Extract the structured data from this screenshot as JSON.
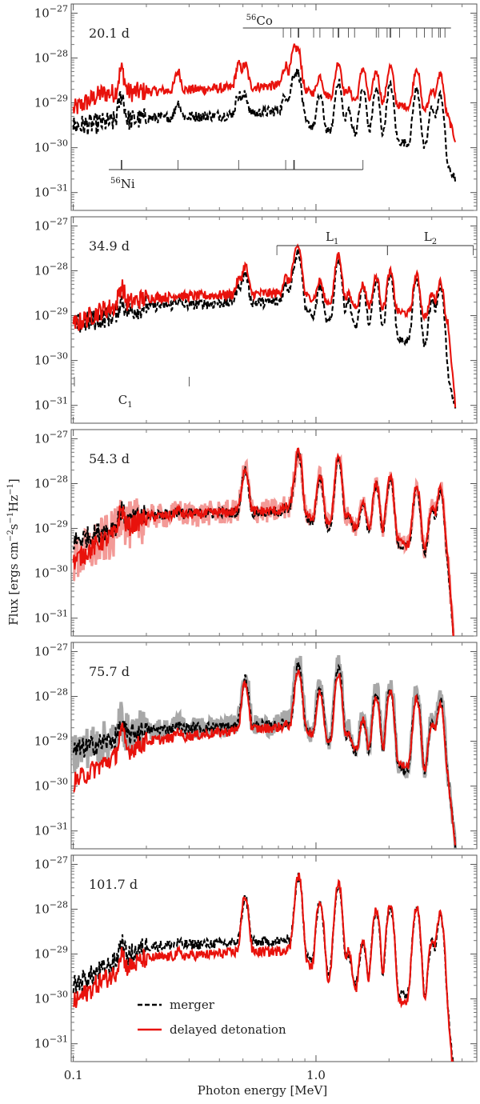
{
  "chart_data": {
    "type": "line",
    "xlabel": "Photon energy [MeV]",
    "ylabel": "Flux [ergs cm$^{-2}$s$^{-1}$Hz$^{-1}$]",
    "ylabel_parts": {
      "flux": "Flux [ergs cm",
      "cm_exp": "−2",
      "s": "s",
      "s_exp": "−1",
      "hz": "Hz",
      "hz_exp": "−1",
      "close": "]"
    },
    "xscale": "log",
    "yscale": "log",
    "xlim": [
      0.098,
      4.6
    ],
    "ylim": [
      4e-32,
      1.6e-27
    ],
    "x_ticks": [
      {
        "value": 0.1,
        "label": "0.1"
      },
      {
        "value": 1.0,
        "label": "1.0"
      }
    ],
    "y_ticks": [
      {
        "value": 1e-27,
        "base": "10",
        "exp": "−27"
      },
      {
        "value": 1e-28,
        "base": "10",
        "exp": "−28"
      },
      {
        "value": 1e-29,
        "base": "10",
        "exp": "−29"
      },
      {
        "value": 1e-30,
        "base": "10",
        "exp": "−30"
      },
      {
        "value": 1e-31,
        "base": "10",
        "exp": "−31"
      }
    ],
    "legend": {
      "placement": "lower-left of bottom panel",
      "entries": [
        {
          "label": "merger",
          "color": "#000000",
          "style": "dashed"
        },
        {
          "label": "delayed detonation",
          "color": "#e8120c",
          "style": "solid"
        }
      ]
    },
    "colors": {
      "merger": "#000000",
      "delayed_detonation": "#e8120c",
      "delayed_detonation_spread": "#f39a97",
      "merger_spread": "#a8a8a8"
    },
    "line_energies_MeV": [
      0.158,
      0.27,
      0.48,
      0.511,
      0.75,
      0.812,
      0.847,
      1.038,
      1.238,
      1.36,
      1.562,
      1.771,
      2.015,
      2.035,
      2.599,
      3.01,
      3.253
    ],
    "panels": [
      {
        "label": "20.1 d",
        "annotations": [
          {
            "label_sup": "56",
            "label": "Co",
            "x_start": 0.5,
            "x_end": 3.6,
            "tick_x": [
              0.733,
              0.787,
              0.847,
              0.978,
              1.038,
              1.175,
              1.238,
              1.36,
              1.442,
              1.771,
              1.81,
              1.964,
              2.015,
              2.035,
              2.213,
              2.599,
              2.8,
              3.01,
              3.202,
              3.253,
              3.4
            ]
          },
          {
            "label_sup": "56",
            "label": "Ni",
            "x_start": 0.14,
            "x_end": 1.56,
            "tick_x": [
              0.158,
              0.27,
              0.48,
              0.75,
              0.812,
              1.562
            ]
          }
        ],
        "continuum": {
          "delayed_detonation": [
            [
              0.1,
              7e-30
            ],
            [
              0.13,
              1.6e-29
            ],
            [
              0.2,
              1.8e-29
            ],
            [
              0.5,
              2.2e-29
            ],
            [
              0.75,
              2.5e-29
            ],
            [
              1.0,
              1.6e-29
            ],
            [
              1.5,
              1.1e-29
            ],
            [
              2.5,
              8e-30
            ],
            [
              3.5,
              5e-30
            ],
            [
              3.75,
              1.5e-30
            ]
          ],
          "merger": [
            [
              0.1,
              3e-30
            ],
            [
              0.2,
              4.5e-30
            ],
            [
              0.5,
              5.5e-30
            ],
            [
              0.75,
              7e-30
            ],
            [
              0.85,
              5e-30
            ],
            [
              1.0,
              2.5e-30
            ],
            [
              1.5,
              2e-30
            ],
            [
              2.5,
              1.2e-30
            ],
            [
              3.3,
              6e-31
            ],
            [
              3.75,
              2e-31
            ]
          ]
        },
        "peaks": {
          "delayed_detonation": [
            5.5e-29,
            5e-29,
            7e-29,
            7e-29,
            7e-29,
            1.4e-28,
            1.3e-28,
            4e-29,
            8e-29,
            2e-29,
            6e-29,
            5e-29,
            4e-29,
            3.5e-29,
            6e-29,
            2e-29,
            4.5e-29
          ],
          "merger": [
            1.5e-29,
            1e-29,
            1.5e-29,
            1.5e-29,
            1.5e-29,
            4e-29,
            4e-29,
            1.5e-29,
            3e-29,
            7e-30,
            2e-29,
            2e-29,
            1.5e-29,
            1.2e-29,
            2e-29,
            8e-30,
            1.5e-29
          ]
        },
        "spread": "none"
      },
      {
        "label": "34.9 d",
        "annotations": [
          {
            "label": "L",
            "label_sub": "1",
            "x_start": 0.69,
            "x_end": 1.97,
            "tick_x": [
              0.69,
              1.97
            ]
          },
          {
            "label": "L",
            "label_sub": "2",
            "x_start": 1.97,
            "x_end": 4.45,
            "tick_x": [
              1.97,
              4.45
            ]
          },
          {
            "label": "C",
            "label_sub": "1",
            "x_start": 0.101,
            "x_end": 0.3,
            "tick_x": [
              0.101,
              0.3
            ],
            "no_line": true
          }
        ],
        "continuum": {
          "delayed_detonation": [
            [
              0.1,
              6e-30
            ],
            [
              0.13,
              1.3e-29
            ],
            [
              0.2,
              2.5e-29
            ],
            [
              0.5,
              3e-29
            ],
            [
              0.85,
              3.3e-29
            ],
            [
              1.0,
              2.2e-29
            ],
            [
              1.5,
              1.6e-29
            ],
            [
              2.5,
              1.1e-29
            ],
            [
              3.5,
              7e-30
            ],
            [
              3.75,
              1e-31
            ]
          ],
          "merger": [
            [
              0.1,
              6e-30
            ],
            [
              0.2,
              1.6e-29
            ],
            [
              0.5,
              2e-29
            ],
            [
              0.85,
              2e-29
            ],
            [
              1.0,
              8e-30
            ],
            [
              1.5,
              5e-30
            ],
            [
              2.5,
              2.5e-30
            ],
            [
              3.3,
              1.5e-30
            ],
            [
              3.75,
              1e-31
            ]
          ]
        },
        "peaks": {
          "delayed_detonation": [
            4.5e-29,
            3e-29,
            6e-29,
            1.3e-28,
            7e-29,
            1.3e-28,
            3.2e-28,
            6e-29,
            2.3e-28,
            3e-29,
            5e-29,
            7.5e-29,
            6e-29,
            5e-29,
            8e-29,
            3e-29,
            6e-29
          ],
          "merger": [
            2.2e-29,
            2.2e-29,
            4.5e-29,
            9e-29,
            5e-29,
            1e-28,
            2.5e-28,
            4.5e-29,
            1.8e-28,
            2.2e-29,
            4e-29,
            6e-29,
            5e-29,
            4e-29,
            6.5e-29,
            2e-29,
            4.5e-29
          ]
        },
        "spread": "none"
      },
      {
        "label": "54.3 d",
        "annotations": [],
        "continuum": {
          "delayed_detonation": [
            [
              0.1,
              1.8e-30
            ],
            [
              0.13,
              5e-30
            ],
            [
              0.2,
              1.8e-29
            ],
            [
              0.5,
              2.4e-29
            ],
            [
              0.85,
              2.5e-29
            ],
            [
              1.0,
              1.4e-29
            ],
            [
              1.5,
              1e-29
            ],
            [
              2.5,
              4e-30
            ],
            [
              3.5,
              2e-30
            ],
            [
              3.75,
              1e-32
            ]
          ],
          "merger": [
            [
              0.1,
              5e-30
            ],
            [
              0.2,
              2e-29
            ],
            [
              0.5,
              2.3e-29
            ],
            [
              0.85,
              2.3e-29
            ],
            [
              1.0,
              1.1e-29
            ],
            [
              1.5,
              8e-30
            ],
            [
              2.5,
              3.5e-30
            ],
            [
              3.5,
              1.5e-30
            ],
            [
              3.75,
              1e-32
            ]
          ]
        },
        "peaks": {
          "delayed_detonation": [
            2.6e-29,
            2.6e-29,
            2.6e-29,
            2.2e-28,
            3e-29,
            5e-29,
            5e-28,
            1.5e-28,
            3.8e-28,
            2e-29,
            4e-29,
            1e-28,
            9e-29,
            6e-29,
            9e-29,
            3e-29,
            8e-29
          ],
          "merger": [
            2.4e-29,
            2.4e-29,
            2.4e-29,
            2e-28,
            2.6e-29,
            4.5e-29,
            4.5e-28,
            1.3e-28,
            3.5e-28,
            2e-29,
            3.5e-29,
            9e-29,
            8e-29,
            5.5e-29,
            8e-29,
            2.5e-29,
            7e-29
          ]
        },
        "spread": "delayed_detonation"
      },
      {
        "label": "75.7 d",
        "annotations": [],
        "continuum": {
          "delayed_detonation": [
            [
              0.1,
              1.2e-30
            ],
            [
              0.13,
              3e-30
            ],
            [
              0.2,
              1e-29
            ],
            [
              0.5,
              1.8e-29
            ],
            [
              0.85,
              2.2e-29
            ],
            [
              1.0,
              1.3e-29
            ],
            [
              1.5,
              6e-30
            ],
            [
              2.5,
              2.5e-30
            ],
            [
              3.5,
              1.5e-30
            ],
            [
              3.75,
              5e-32
            ]
          ],
          "merger": [
            [
              0.1,
              6e-30
            ],
            [
              0.2,
              1.8e-29
            ],
            [
              0.5,
              2.2e-29
            ],
            [
              0.85,
              2.3e-29
            ],
            [
              1.0,
              1.2e-29
            ],
            [
              1.5,
              5e-30
            ],
            [
              2.5,
              2e-30
            ],
            [
              3.5,
              1.5e-30
            ],
            [
              3.75,
              5e-32
            ]
          ]
        },
        "peaks": {
          "delayed_detonation": [
            1.7e-29,
            1.7e-29,
            1.9e-29,
            1.9e-28,
            2.3e-29,
            3e-29,
            4e-28,
            1.2e-28,
            3.2e-28,
            1.5e-29,
            3e-29,
            1e-28,
            8e-29,
            6e-29,
            9e-29,
            2.5e-29,
            7e-29
          ],
          "merger": [
            2.2e-29,
            2.2e-29,
            2.3e-29,
            2.5e-28,
            2.5e-29,
            3.5e-29,
            5e-28,
            1.5e-28,
            4e-28,
            1.5e-29,
            3e-29,
            1.1e-28,
            9e-29,
            6e-29,
            1e-28,
            2.5e-29,
            8e-29
          ]
        },
        "spread": "merger"
      },
      {
        "label": "101.7 d",
        "annotations": [],
        "continuum": {
          "delayed_detonation": [
            [
              0.1,
              8e-31
            ],
            [
              0.13,
              2.5e-30
            ],
            [
              0.2,
              8e-30
            ],
            [
              0.5,
              1.1e-29
            ],
            [
              0.85,
              1.2e-29
            ],
            [
              1.0,
              3.5e-30
            ],
            [
              1.5,
              1.2e-30
            ],
            [
              2.5,
              8e-31
            ],
            [
              3.5,
              3e-31
            ],
            [
              3.75,
              1e-32
            ]
          ],
          "merger": [
            [
              0.1,
              2e-30
            ],
            [
              0.2,
              1.5e-29
            ],
            [
              0.5,
              1.8e-29
            ],
            [
              0.85,
              2e-29
            ],
            [
              1.0,
              5e-30
            ],
            [
              1.5,
              1.8e-30
            ],
            [
              2.5,
              1.2e-30
            ],
            [
              3.5,
              5e-31
            ],
            [
              3.75,
              1e-32
            ]
          ]
        },
        "peaks": {
          "delayed_detonation": [
            1.1e-29,
            1.1e-29,
            1.2e-29,
            2e-28,
            1.3e-29,
            2e-29,
            5.5e-28,
            1.6e-28,
            3.8e-28,
            1.2e-29,
            2e-29,
            1e-28,
            8e-29,
            5e-29,
            1.1e-28,
            2e-29,
            8e-29
          ],
          "merger": [
            1.8e-29,
            1.8e-29,
            1.9e-29,
            1.8e-28,
            2e-29,
            2.5e-29,
            5e-28,
            1.4e-28,
            3.5e-28,
            1e-29,
            1.8e-29,
            9e-29,
            7e-29,
            4.5e-29,
            1e-28,
            1.8e-29,
            7e-29
          ]
        },
        "spread": "none"
      }
    ]
  }
}
